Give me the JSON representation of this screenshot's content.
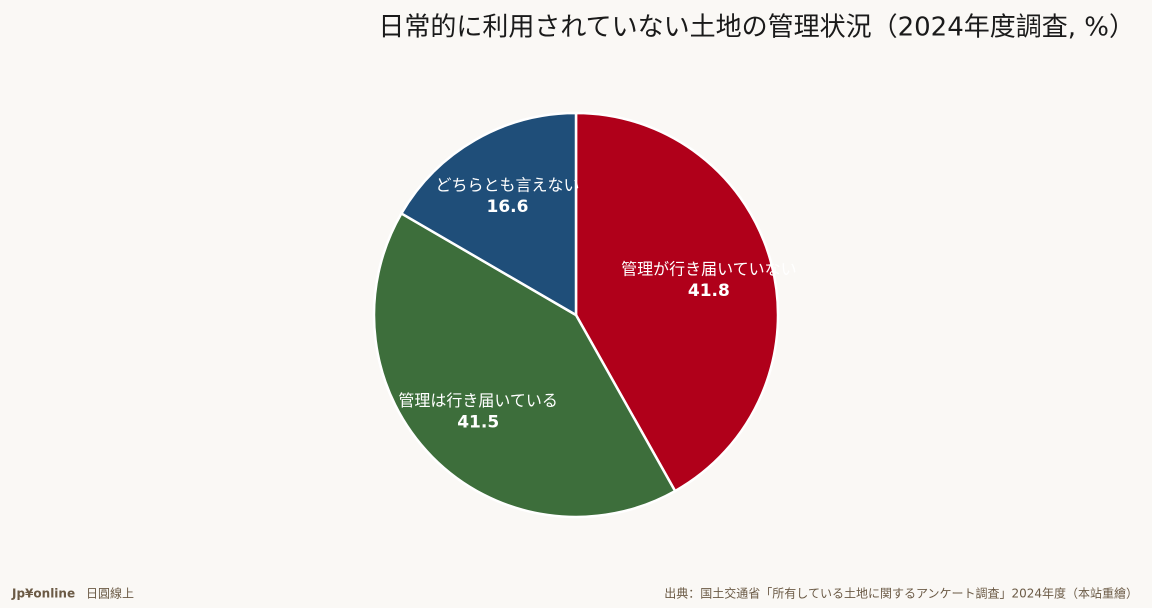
{
  "chart_data": {
    "type": "pie",
    "title": "日常的に利用されていない土地の管理状況（2024年度調査, %）",
    "categories": [
      "管理が行き届いていない",
      "管理は行き届いている",
      "どちらとも言えない"
    ],
    "values": [
      41.8,
      41.5,
      16.6
    ],
    "colors": [
      "#b0001a",
      "#3d6e3b",
      "#1f4e79"
    ]
  },
  "footer": {
    "brand": "Jp¥online",
    "brand_name": "日圓線上",
    "source": "出典：国土交通省「所有している土地に関するアンケート調査」2024年度（本站重繪）"
  }
}
